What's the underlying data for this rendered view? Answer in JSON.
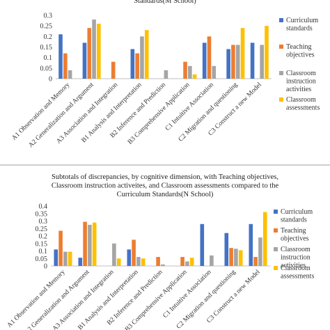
{
  "chart_data": [
    {
      "type": "bar",
      "title": "Standards(M School)",
      "categories": [
        "A1 Observation and Memory",
        "A2 Generalization and Argument",
        "A3 Association and Integration",
        "B1 Analysis and Interpretation",
        "B2 Inference and Prediction",
        "B3 Comprehensive Application",
        "C1 Intuitive Association",
        "C2 Migration and questioning",
        "C3 Construct a new Model"
      ],
      "yticks": [
        "0",
        "0.05",
        "0.1",
        "0.15",
        "0.2",
        "0.25",
        "0.3"
      ],
      "ylim": [
        0,
        0.3
      ],
      "grid": false,
      "legend_position": "right",
      "series": [
        {
          "name": "Curriculum standards",
          "color": "#4472C4",
          "values": [
            0.21,
            0.17,
            0,
            0.14,
            0,
            0,
            0.17,
            0.14,
            0.17
          ]
        },
        {
          "name": "Teaching objectives",
          "color": "#ED7D31",
          "values": [
            0.12,
            0.24,
            0.08,
            0.12,
            0,
            0.08,
            0.2,
            0.16,
            0
          ]
        },
        {
          "name": "Classroom instruction activities",
          "color": "#A5A5A5",
          "values": [
            0.04,
            0.28,
            0,
            0.2,
            0.04,
            0.06,
            0.06,
            0.16,
            0.16
          ]
        },
        {
          "name": "Classroom assessments",
          "color": "#FFC000",
          "values": [
            0,
            0.26,
            0,
            0.23,
            0,
            0.02,
            0,
            0.24,
            0.25
          ]
        }
      ]
    },
    {
      "type": "bar",
      "title": "Subtotals of discrepancies, by cognitive dimension, with Teaching objectives, Classroom instruction activeites, and Classroom assessments compared to the Curriculum Standards(N School)",
      "categories": [
        "A1 Observation and Memory",
        "A2 Generalization and Argument",
        "A3 Association and Integration",
        "B1 Analysis and Interpretation",
        "B2 Inference and Prediction",
        "B3 Comprehensive Application",
        "C1 Intuitive Association",
        "C2 Migration and questioning",
        "C3 Construct a new Model"
      ],
      "yticks": [
        "0",
        "0.05",
        "0.1",
        "0.15",
        "0.2",
        "0.25",
        "0.3",
        "0.35",
        "0.4"
      ],
      "ylim": [
        0,
        0.4
      ],
      "grid": false,
      "legend_position": "right",
      "series": [
        {
          "name": "Curriculum standards",
          "color": "#4472C4",
          "values": [
            0.11,
            0.055,
            0,
            0.11,
            0,
            0,
            0.28,
            0.22,
            0.28
          ]
        },
        {
          "name": "Teaching objectives",
          "color": "#ED7D31",
          "values": [
            0.235,
            0.295,
            0,
            0.175,
            0.06,
            0.06,
            0,
            0.12,
            0.06
          ]
        },
        {
          "name": "Classroom instruction activities",
          "color": "#A5A5A5",
          "values": [
            0.095,
            0.275,
            0.15,
            0.06,
            0.01,
            0.03,
            0.07,
            0.115,
            0.19
          ]
        },
        {
          "name": "Classroom assessments",
          "color": "#FFC000",
          "values": [
            0.095,
            0.29,
            0.05,
            0.05,
            0,
            0.055,
            0,
            0.105,
            0.36
          ]
        }
      ]
    }
  ]
}
